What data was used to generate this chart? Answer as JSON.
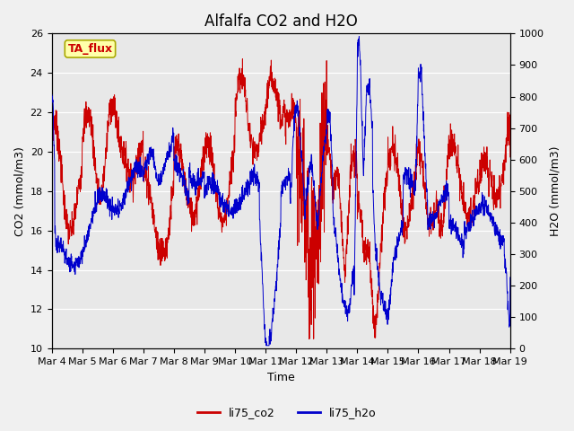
{
  "title": "Alfalfa CO2 and H2O",
  "xlabel": "Time",
  "ylabel_left": "CO2 (mmol/m3)",
  "ylabel_right": "H2O (mmol/m3)",
  "ylim_left": [
    10,
    26
  ],
  "ylim_right": [
    0,
    1000
  ],
  "yticks_left": [
    10,
    12,
    14,
    16,
    18,
    20,
    22,
    24,
    26
  ],
  "yticks_right": [
    0,
    100,
    200,
    300,
    400,
    500,
    600,
    700,
    800,
    900,
    1000
  ],
  "fig_bg_color": "#f0f0f0",
  "plot_bg_color": "#e8e8e8",
  "line_co2_color": "#cc0000",
  "line_h2o_color": "#0000cc",
  "legend_labels": [
    "li75_co2",
    "li75_h2o"
  ],
  "annotation_text": "TA_flux",
  "annotation_bg": "#ffffaa",
  "annotation_border": "#aaaa00",
  "annotation_color": "#cc0000",
  "title_fontsize": 12,
  "axis_fontsize": 9,
  "tick_fontsize": 8,
  "legend_fontsize": 9
}
